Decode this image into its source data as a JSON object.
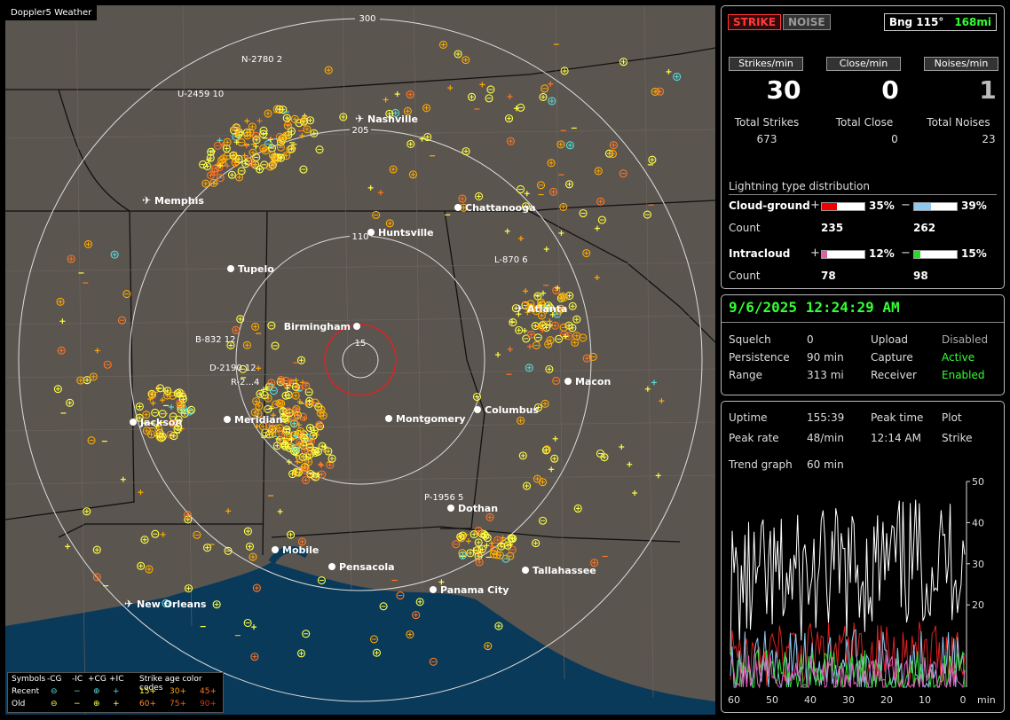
{
  "app": {
    "watermark": "Doppler5 Weather"
  },
  "colors": {
    "recent15": "#ffff44",
    "mid30": "#ffaa00",
    "old45": "#ff7722",
    "ic_recent": "#55dddd",
    "strike": "#ff3a3a",
    "green": "#33ff33",
    "land": "#5b5550",
    "water": "#0a3a5a"
  },
  "map": {
    "range_rings": [
      "300",
      "205",
      "110",
      "15"
    ],
    "cities": [
      "Nashville",
      "Memphis",
      "Chattanooga",
      "Huntsville",
      "Tupelo",
      "Birmingham",
      "Atlanta",
      "Macon",
      "Montgomery",
      "Columbus",
      "Jackson",
      "Meridian",
      "Dothan",
      "Mobile",
      "Pensacola",
      "Tallahassee",
      "Panama City",
      "New Orleans"
    ],
    "tracks": [
      "N-2780 2",
      "U-2459 10",
      "L-870 6",
      "B-832 12",
      "D-2190 12",
      "R-2...4",
      "P-1956 5"
    ]
  },
  "legend": {
    "title_symbols": "Symbols",
    "cols": [
      "-CG",
      "-IC",
      "+CG",
      "+IC"
    ],
    "age_title": "Strike age color codes",
    "recent_label": "Recent",
    "old_label": "Old",
    "ages_recent": [
      "15+",
      "30+",
      "45+"
    ],
    "ages_old": [
      "60+",
      "75+",
      "90+"
    ]
  },
  "header": {
    "strike_btn": "STRIKE",
    "noise_btn": "NOISE",
    "bearing": "Bng 115°",
    "distance": "168mi"
  },
  "counts": {
    "strikes_tab": "Strikes/min",
    "close_tab": "Close/min",
    "noises_tab": "Noises/min",
    "strikes_val": "30",
    "close_val": "0",
    "noises_val": "1",
    "total_strikes_label": "Total Strikes",
    "total_close_label": "Total Close",
    "total_noises_label": "Total Noises",
    "total_strikes": "673",
    "total_close": "0",
    "total_noises": "23"
  },
  "distribution": {
    "title": "Lightning type distribution",
    "cg_label": "Cloud-ground",
    "ic_label": "Intracloud",
    "count_label": "Count",
    "plus": "+",
    "minus": "−",
    "cg_pos_pct": "35%",
    "cg_neg_pct": "39%",
    "ic_pos_pct": "12%",
    "ic_neg_pct": "15%",
    "cg_pos_count": "235",
    "cg_neg_count": "262",
    "ic_pos_count": "78",
    "ic_neg_count": "98",
    "cg_pos_frac": 0.35,
    "cg_neg_frac": 0.39,
    "ic_pos_frac": 0.12,
    "ic_neg_frac": 0.15
  },
  "status": {
    "datetime": "9/6/2025 12:24:29 AM",
    "squelch_label": "Squelch",
    "squelch": "0",
    "persistence_label": "Persistence",
    "persistence": "90 min",
    "range_label": "Range",
    "range": "313 mi",
    "upload_label": "Upload",
    "upload": "Disabled",
    "capture_label": "Capture",
    "capture": "Active",
    "receiver_label": "Receiver",
    "receiver": "Enabled"
  },
  "trend": {
    "uptime_label": "Uptime",
    "uptime": "155:39",
    "peak_time_label": "Peak time",
    "peak_time": "12:14 AM",
    "plot_label": "Plot",
    "plot": "Strike",
    "peak_rate_label": "Peak rate",
    "peak_rate": "48/min",
    "trend_graph_label": "Trend graph",
    "trend_graph": "60 min",
    "y_ticks": [
      "50",
      "40",
      "30",
      "20"
    ],
    "x_ticks": [
      "60",
      "50",
      "40",
      "30",
      "20",
      "10",
      "0"
    ],
    "x_unit": "min"
  }
}
